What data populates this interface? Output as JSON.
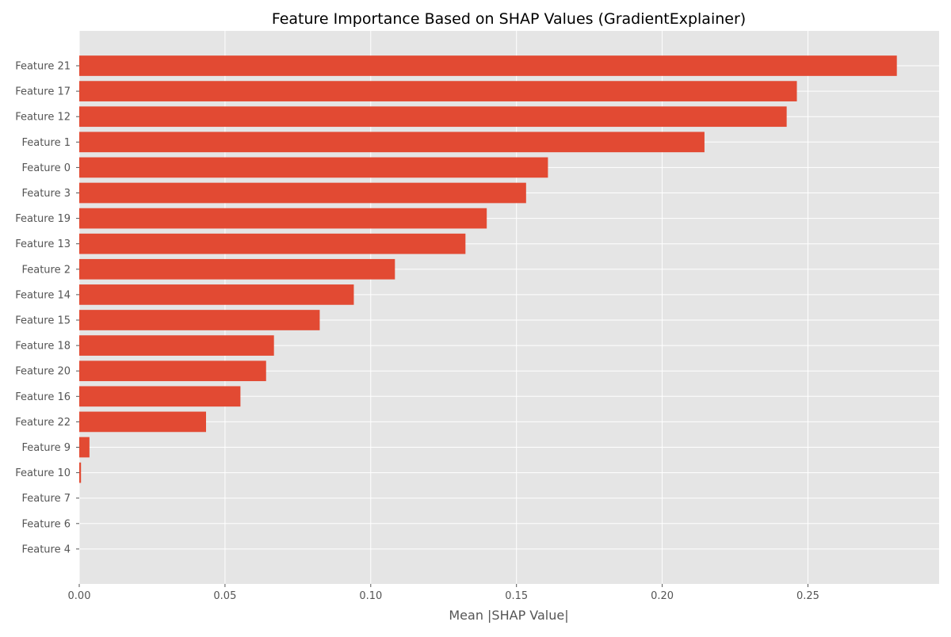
{
  "chart_data": {
    "type": "bar",
    "orientation": "horizontal",
    "title": "Feature Importance Based on SHAP Values (GradientExplainer)",
    "xlabel": "Mean |SHAP Value|",
    "ylabel": "",
    "xlim": [
      0,
      0.295
    ],
    "xticks": [
      0.0,
      0.05,
      0.1,
      0.15,
      0.2,
      0.25
    ],
    "xtick_labels": [
      "0.00",
      "0.05",
      "0.10",
      "0.15",
      "0.20",
      "0.25"
    ],
    "grid": true,
    "categories": [
      "Feature 21",
      "Feature 17",
      "Feature 12",
      "Feature 1",
      "Feature 0",
      "Feature 3",
      "Feature 19",
      "Feature 13",
      "Feature 2",
      "Feature 14",
      "Feature 15",
      "Feature 18",
      "Feature 20",
      "Feature 16",
      "Feature 22",
      "Feature 9",
      "Feature 10",
      "Feature 7",
      "Feature 6",
      "Feature 4"
    ],
    "values": [
      0.2805,
      0.2462,
      0.2427,
      0.2145,
      0.1608,
      0.1533,
      0.1398,
      0.1325,
      0.1083,
      0.0942,
      0.0825,
      0.0668,
      0.0641,
      0.0553,
      0.0435,
      0.0035,
      0.0006,
      0.0,
      0.0,
      0.0
    ],
    "colors": {
      "bar": "#E24A33",
      "plot_background": "#E5E5E5",
      "grid": "#FFFFFF",
      "tick_text": "#555555",
      "title_text": "#000000",
      "axis_label": "#555555"
    }
  }
}
